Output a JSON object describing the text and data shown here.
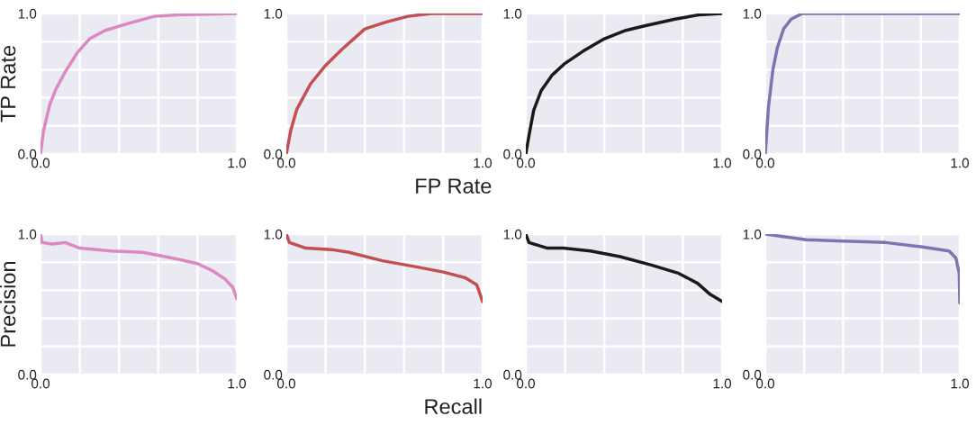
{
  "chart_data": [
    {
      "type": "line",
      "ylabel": "TP Rate",
      "xlim": [
        0,
        1
      ],
      "ylim": [
        0,
        1
      ],
      "xticks": [
        {
          "value": 0,
          "label": "0.0"
        },
        {
          "value": 0.2,
          "label": null
        },
        {
          "value": 0.4,
          "label": null
        },
        {
          "value": 0.6,
          "label": null
        },
        {
          "value": 0.8,
          "label": null
        },
        {
          "value": 1,
          "label": "1.0"
        }
      ],
      "yticks": [
        {
          "value": 0,
          "label": "0.0"
        },
        {
          "value": 0.2,
          "label": null
        },
        {
          "value": 0.4,
          "label": null
        },
        {
          "value": 0.6,
          "label": null
        },
        {
          "value": 0.8,
          "label": null
        },
        {
          "value": 1,
          "label": "1.0"
        }
      ],
      "grid": true,
      "series": [
        {
          "color": "#dd88c1",
          "x": [
            0,
            0.016,
            0.047,
            0.078,
            0.124,
            0.187,
            0.25,
            0.33,
            0.45,
            0.58,
            0.7,
            1
          ],
          "values": [
            0,
            0.17,
            0.35,
            0.46,
            0.58,
            0.72,
            0.82,
            0.88,
            0.93,
            0.98,
            0.99,
            1
          ]
        }
      ]
    },
    {
      "type": "line",
      "xlabel": "FP Rate",
      "xlim": [
        0,
        1
      ],
      "ylim": [
        0,
        1
      ],
      "xticks": [
        {
          "value": 0,
          "label": "0.0"
        },
        {
          "value": 0.2,
          "label": null
        },
        {
          "value": 0.4,
          "label": null
        },
        {
          "value": 0.6,
          "label": null
        },
        {
          "value": 0.8,
          "label": null
        },
        {
          "value": 1,
          "label": "1.0"
        }
      ],
      "yticks": [
        {
          "value": 0,
          "label": "0.0"
        },
        {
          "value": 0.2,
          "label": null
        },
        {
          "value": 0.4,
          "label": null
        },
        {
          "value": 0.6,
          "label": null
        },
        {
          "value": 0.8,
          "label": null
        },
        {
          "value": 1,
          "label": "1.0"
        }
      ],
      "grid": true,
      "series": [
        {
          "color": "#c44e52",
          "x": [
            0,
            0.023,
            0.054,
            0.124,
            0.2,
            0.28,
            0.4,
            0.51,
            0.62,
            0.74,
            1
          ],
          "values": [
            0,
            0.17,
            0.32,
            0.5,
            0.63,
            0.74,
            0.89,
            0.94,
            0.98,
            1,
            1
          ]
        }
      ]
    },
    {
      "type": "line",
      "xlim": [
        0,
        1
      ],
      "ylim": [
        0,
        1
      ],
      "xticks": [
        {
          "value": 0,
          "label": "0.0"
        },
        {
          "value": 0.2,
          "label": null
        },
        {
          "value": 0.4,
          "label": null
        },
        {
          "value": 0.6,
          "label": null
        },
        {
          "value": 0.8,
          "label": null
        },
        {
          "value": 1,
          "label": "1.0"
        }
      ],
      "yticks": [
        {
          "value": 0,
          "label": "0.0"
        },
        {
          "value": 0.2,
          "label": null
        },
        {
          "value": 0.4,
          "label": null
        },
        {
          "value": 0.6,
          "label": null
        },
        {
          "value": 0.8,
          "label": null
        },
        {
          "value": 1,
          "label": "1.0"
        }
      ],
      "grid": true,
      "series": [
        {
          "color": "#1a1a1a",
          "x": [
            0,
            0.016,
            0.04,
            0.078,
            0.133,
            0.195,
            0.29,
            0.4,
            0.51,
            0.6,
            0.76,
            0.88,
            1
          ],
          "values": [
            0,
            0.13,
            0.31,
            0.45,
            0.56,
            0.64,
            0.73,
            0.82,
            0.88,
            0.91,
            0.96,
            0.99,
            1
          ]
        }
      ]
    },
    {
      "type": "line",
      "xlim": [
        0,
        1
      ],
      "ylim": [
        0,
        1
      ],
      "xticks": [
        {
          "value": 0,
          "label": "0.0"
        },
        {
          "value": 0.2,
          "label": null
        },
        {
          "value": 0.4,
          "label": null
        },
        {
          "value": 0.6,
          "label": null
        },
        {
          "value": 0.8,
          "label": null
        },
        {
          "value": 1,
          "label": "1.0"
        }
      ],
      "yticks": [
        {
          "value": 0,
          "label": "0.0"
        },
        {
          "value": 0.2,
          "label": null
        },
        {
          "value": 0.4,
          "label": null
        },
        {
          "value": 0.6,
          "label": null
        },
        {
          "value": 0.8,
          "label": null
        },
        {
          "value": 1,
          "label": "1.0"
        }
      ],
      "grid": true,
      "series": [
        {
          "color": "#8172b2",
          "x": [
            0,
            0.016,
            0.039,
            0.0625,
            0.094,
            0.133,
            0.19,
            1
          ],
          "values": [
            0,
            0.33,
            0.6,
            0.76,
            0.89,
            0.96,
            1,
            1
          ]
        }
      ]
    },
    {
      "type": "line",
      "ylabel": "Precision",
      "xlim": [
        0,
        1
      ],
      "ylim": [
        0,
        1
      ],
      "xticks": [
        {
          "value": 0,
          "label": "0.0"
        },
        {
          "value": 0.2,
          "label": null
        },
        {
          "value": 0.4,
          "label": null
        },
        {
          "value": 0.6,
          "label": null
        },
        {
          "value": 0.8,
          "label": null
        },
        {
          "value": 1,
          "label": "1.0"
        }
      ],
      "yticks": [
        {
          "value": 0,
          "label": "0.0"
        },
        {
          "value": 0.2,
          "label": null
        },
        {
          "value": 0.4,
          "label": null
        },
        {
          "value": 0.6,
          "label": null
        },
        {
          "value": 0.8,
          "label": null
        },
        {
          "value": 1,
          "label": "1.0"
        }
      ],
      "grid": true,
      "series": [
        {
          "color": "#dd88c1",
          "x": [
            0,
            0.008,
            0.06,
            0.125,
            0.2,
            0.36,
            0.52,
            0.67,
            0.8,
            0.875,
            0.94,
            0.98,
            1
          ],
          "values": [
            1,
            0.94,
            0.93,
            0.94,
            0.9,
            0.88,
            0.87,
            0.83,
            0.79,
            0.74,
            0.68,
            0.62,
            0.54
          ]
        }
      ]
    },
    {
      "type": "line",
      "xlabel": "Recall",
      "xlim": [
        0,
        1
      ],
      "ylim": [
        0,
        1
      ],
      "xticks": [
        {
          "value": 0,
          "label": "0.0"
        },
        {
          "value": 0.2,
          "label": null
        },
        {
          "value": 0.4,
          "label": null
        },
        {
          "value": 0.6,
          "label": null
        },
        {
          "value": 0.8,
          "label": null
        },
        {
          "value": 1,
          "label": "1.0"
        }
      ],
      "yticks": [
        {
          "value": 0,
          "label": "0.0"
        },
        {
          "value": 0.2,
          "label": null
        },
        {
          "value": 0.4,
          "label": null
        },
        {
          "value": 0.6,
          "label": null
        },
        {
          "value": 0.8,
          "label": null
        },
        {
          "value": 1,
          "label": "1.0"
        }
      ],
      "grid": true,
      "series": [
        {
          "color": "#c44e52",
          "x": [
            0,
            0.016,
            0.1,
            0.23,
            0.32,
            0.49,
            0.65,
            0.8,
            0.91,
            0.97,
            1
          ],
          "values": [
            1,
            0.94,
            0.9,
            0.89,
            0.87,
            0.81,
            0.77,
            0.73,
            0.69,
            0.64,
            0.52
          ]
        }
      ]
    },
    {
      "type": "line",
      "xlim": [
        0,
        1
      ],
      "ylim": [
        0,
        1
      ],
      "xticks": [
        {
          "value": 0,
          "label": "0.0"
        },
        {
          "value": 0.2,
          "label": null
        },
        {
          "value": 0.4,
          "label": null
        },
        {
          "value": 0.6,
          "label": null
        },
        {
          "value": 0.8,
          "label": null
        },
        {
          "value": 1,
          "label": "1.0"
        }
      ],
      "yticks": [
        {
          "value": 0,
          "label": "0.0"
        },
        {
          "value": 0.2,
          "label": null
        },
        {
          "value": 0.4,
          "label": null
        },
        {
          "value": 0.6,
          "label": null
        },
        {
          "value": 0.8,
          "label": null
        },
        {
          "value": 1,
          "label": "1.0"
        }
      ],
      "grid": true,
      "series": [
        {
          "color": "#1a1a1a",
          "x": [
            0,
            0.016,
            0.11,
            0.19,
            0.33,
            0.48,
            0.64,
            0.78,
            0.875,
            0.94,
            1
          ],
          "values": [
            1,
            0.94,
            0.9,
            0.9,
            0.88,
            0.84,
            0.78,
            0.72,
            0.65,
            0.57,
            0.52
          ]
        }
      ]
    },
    {
      "type": "line",
      "xlim": [
        0,
        1
      ],
      "ylim": [
        0,
        1
      ],
      "xticks": [
        {
          "value": 0,
          "label": "0.0"
        },
        {
          "value": 0.2,
          "label": null
        },
        {
          "value": 0.4,
          "label": null
        },
        {
          "value": 0.6,
          "label": null
        },
        {
          "value": 0.8,
          "label": null
        },
        {
          "value": 1,
          "label": "1.0"
        }
      ],
      "yticks": [
        {
          "value": 0,
          "label": "0.0"
        },
        {
          "value": 0.2,
          "label": null
        },
        {
          "value": 0.4,
          "label": null
        },
        {
          "value": 0.6,
          "label": null
        },
        {
          "value": 0.8,
          "label": null
        },
        {
          "value": 1,
          "label": "1.0"
        }
      ],
      "grid": true,
      "series": [
        {
          "color": "#8172b2",
          "x": [
            0,
            0.21,
            0.4,
            0.62,
            0.8,
            0.945,
            0.98,
            0.997,
            1
          ],
          "values": [
            1,
            0.96,
            0.95,
            0.94,
            0.91,
            0.88,
            0.83,
            0.72,
            0.51
          ]
        }
      ]
    }
  ]
}
